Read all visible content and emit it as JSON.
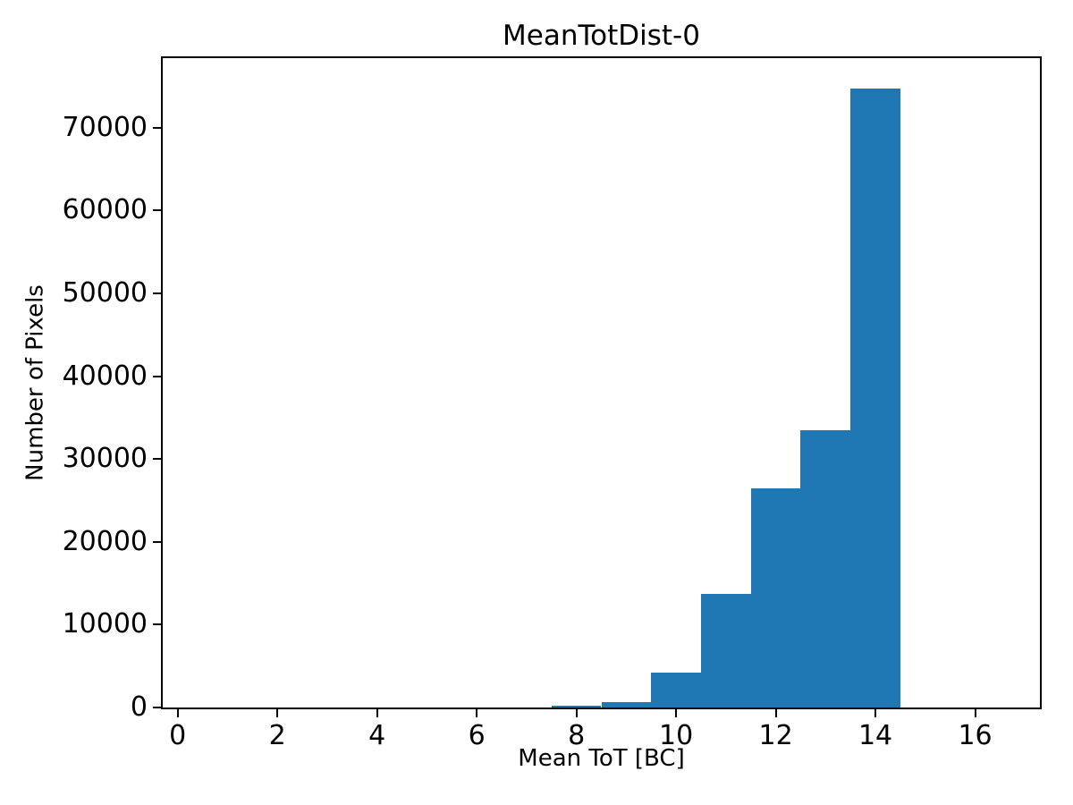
{
  "figure": {
    "background": "#ffffff"
  },
  "chart_data": {
    "type": "bar",
    "subtype": "histogram",
    "title": "MeanTotDist-0",
    "xlabel": "Mean ToT [BC]",
    "ylabel": "Number of Pixels",
    "bar_color": "#1f77b4",
    "bin_width": 1,
    "bin_centers": [
      1,
      2,
      3,
      4,
      5,
      6,
      7,
      8,
      9,
      10,
      11,
      12,
      13,
      14,
      15,
      16
    ],
    "counts": [
      0,
      0,
      0,
      0,
      0,
      0,
      0,
      200,
      700,
      4200,
      13700,
      26500,
      33500,
      74700,
      0,
      0
    ],
    "xlim": [
      -0.3,
      17.3
    ],
    "ylim": [
      0,
      78400
    ],
    "xticks": [
      0,
      2,
      4,
      6,
      8,
      10,
      12,
      14,
      16
    ],
    "yticks": [
      0,
      10000,
      20000,
      30000,
      40000,
      50000,
      60000,
      70000
    ],
    "grid": false,
    "legend": null,
    "axis_color": "#000000",
    "text_color": "#000000"
  }
}
